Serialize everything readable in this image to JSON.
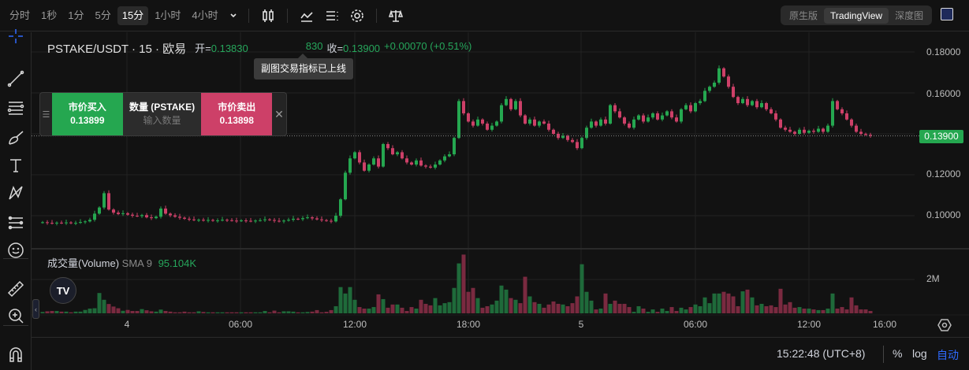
{
  "toolbar": {
    "timeframes": [
      {
        "label": "分时",
        "active": false
      },
      {
        "label": "1秒",
        "active": false
      },
      {
        "label": "1分",
        "active": false
      },
      {
        "label": "5分",
        "active": false
      },
      {
        "label": "15分",
        "active": true
      },
      {
        "label": "1小时",
        "active": false
      },
      {
        "label": "4小时",
        "active": false
      }
    ],
    "icons": [
      "chevron-down-icon",
      "candlestick-icon",
      "indicator-icon",
      "layout-icon",
      "gear-icon",
      "scale-icon"
    ],
    "view_modes": [
      {
        "label": "原生版",
        "active": false
      },
      {
        "label": "TradingView",
        "active": true
      },
      {
        "label": "深度图",
        "active": false
      }
    ]
  },
  "tooltip": "副图交易指标已上线",
  "legend": {
    "symbol": "PSTAKE/USDT · 15 · 欧易",
    "open_label": "开=",
    "open": "0.13830",
    "low_partial": "830",
    "close_label": "收=",
    "close": "0.13900",
    "change": "+0.00070 (+0.51%)"
  },
  "order": {
    "buy_label": "市价买入",
    "buy_price": "0.13899",
    "qty_label": "数量 (PSTAKE)",
    "qty_placeholder": "输入数量",
    "sell_label": "市价卖出",
    "sell_price": "0.13898",
    "close": "✕"
  },
  "volume_legend": {
    "title": "成交量(Volume)",
    "sma": "SMA 9",
    "value": "95.104K"
  },
  "price_axis": [
    "0.18000",
    "0.16000",
    "0.12000",
    "0.10000"
  ],
  "current_price": "0.13900",
  "volume_axis": "2M",
  "time_axis": [
    "4",
    "06:00",
    "12:00",
    "18:00",
    "5",
    "06:00",
    "12:00",
    "16:00"
  ],
  "bottom": {
    "clock": "15:22:48 (UTC+8)",
    "percent": "%",
    "log": "log",
    "auto": "自动"
  },
  "colors": {
    "up": "#25a750",
    "down": "#cd4068",
    "vol_up": "#1f6a3a",
    "vol_down": "#7a2a40",
    "auto": "#2f6bff"
  },
  "chart_data": {
    "type": "candlestick",
    "interval": "15m",
    "closes": [
      0.0968,
      0.0965,
      0.0962,
      0.0966,
      0.0964,
      0.0967,
      0.0963,
      0.0965,
      0.0969,
      0.0972,
      0.098,
      0.101,
      0.104,
      0.111,
      0.103,
      0.1015,
      0.1008,
      0.1012,
      0.1005,
      0.1,
      0.0998,
      0.1003,
      0.0992,
      0.0988,
      0.0995,
      0.1035,
      0.101,
      0.1002,
      0.0995,
      0.099,
      0.0985,
      0.0982,
      0.0978,
      0.098,
      0.0976,
      0.0979,
      0.0975,
      0.0977,
      0.098,
      0.0978,
      0.0976,
      0.0974,
      0.0977,
      0.0975,
      0.0973,
      0.0976,
      0.0978,
      0.0982,
      0.0979,
      0.0975,
      0.0972,
      0.0976,
      0.098,
      0.0985,
      0.0983,
      0.0988,
      0.0992,
      0.0987,
      0.0982,
      0.0978,
      0.0975,
      0.0972,
      0.1,
      0.108,
      0.121,
      0.128,
      0.131,
      0.126,
      0.122,
      0.125,
      0.128,
      0.124,
      0.135,
      0.133,
      0.13,
      0.131,
      0.128,
      0.126,
      0.125,
      0.127,
      0.1245,
      0.124,
      0.1235,
      0.125,
      0.127,
      0.129,
      0.13,
      0.138,
      0.156,
      0.15,
      0.146,
      0.144,
      0.147,
      0.145,
      0.142,
      0.144,
      0.146,
      0.154,
      0.157,
      0.152,
      0.156,
      0.149,
      0.145,
      0.147,
      0.144,
      0.146,
      0.145,
      0.142,
      0.14,
      0.138,
      0.139,
      0.137,
      0.136,
      0.133,
      0.138,
      0.143,
      0.146,
      0.144,
      0.147,
      0.145,
      0.154,
      0.151,
      0.148,
      0.145,
      0.143,
      0.147,
      0.149,
      0.146,
      0.148,
      0.15,
      0.147,
      0.149,
      0.151,
      0.148,
      0.146,
      0.152,
      0.154,
      0.151,
      0.155,
      0.156,
      0.161,
      0.163,
      0.165,
      0.172,
      0.168,
      0.163,
      0.158,
      0.155,
      0.157,
      0.154,
      0.156,
      0.153,
      0.155,
      0.152,
      0.15,
      0.147,
      0.143,
      0.142,
      0.141,
      0.14,
      0.142,
      0.1405,
      0.1415,
      0.141,
      0.1425,
      0.141,
      0.144,
      0.156,
      0.152,
      0.15,
      0.147,
      0.144,
      0.141,
      0.14,
      0.1395,
      0.139
    ],
    "volume_millions": [
      0.08,
      0.12,
      0.14,
      0.14,
      0.1,
      0.1,
      0.06,
      0.1,
      0.1,
      0.2,
      0.28,
      0.3,
      1.2,
      0.8,
      0.55,
      0.4,
      0.3,
      0.15,
      0.2,
      0.14,
      0.14,
      0.25,
      0.18,
      0.12,
      0.1,
      0.22,
      0.14,
      0.1,
      0.06,
      0.06,
      0.1,
      0.06,
      0.06,
      0.12,
      0.08,
      0.06,
      0.06,
      0.06,
      0.06,
      0.06,
      0.06,
      0.06,
      0.06,
      0.06,
      0.06,
      0.06,
      0.06,
      0.14,
      0.06,
      0.16,
      0.06,
      0.12,
      0.12,
      0.1,
      0.06,
      0.06,
      0.08,
      0.1,
      0.19,
      0.06,
      0.09,
      0.19,
      0.42,
      1.55,
      1.17,
      1.55,
      0.8,
      0.37,
      0.28,
      0.28,
      0.37,
      1.12,
      0.84,
      0.33,
      0.52,
      0.52,
      0.33,
      0.14,
      0.37,
      0.28,
      0.8,
      0.56,
      0.47,
      0.9,
      0.47,
      0.6,
      0.66,
      1.5,
      2.95,
      3.47,
      1.27,
      1.5,
      0.9,
      0.33,
      0.42,
      0.52,
      0.75,
      1.64,
      1.4,
      0.9,
      0.8,
      0.6,
      2.16,
      1.0,
      0.66,
      0.56,
      0.33,
      0.52,
      0.7,
      0.56,
      0.52,
      0.42,
      0.6,
      1.0,
      2.9,
      1.27,
      0.75,
      0.23,
      0.28,
      1.17,
      0.56,
      0.75,
      0.56,
      0.56,
      0.37,
      0.09,
      0.42,
      0.28,
      0.09,
      0.23,
      0.09,
      0.28,
      0.14,
      0.37,
      0.14,
      0.33,
      0.23,
      0.37,
      0.52,
      0.42,
      0.94,
      0.6,
      1.17,
      1.17,
      1.27,
      1.17,
      1.0,
      0.42,
      1.3,
      1.4,
      0.94,
      0.47,
      0.56,
      0.42,
      0.47,
      0.37,
      1.45,
      0.52,
      0.66,
      0.33,
      0.37,
      0.28,
      0.28,
      0.23,
      0.19,
      0.19,
      0.28,
      1.17,
      0.28,
      0.37,
      0.23,
      0.94,
      0.47,
      0.23,
      0.23,
      0.14
    ],
    "first_open": 0.0966,
    "ylim": [
      0.09,
      0.185
    ],
    "grid": true
  }
}
